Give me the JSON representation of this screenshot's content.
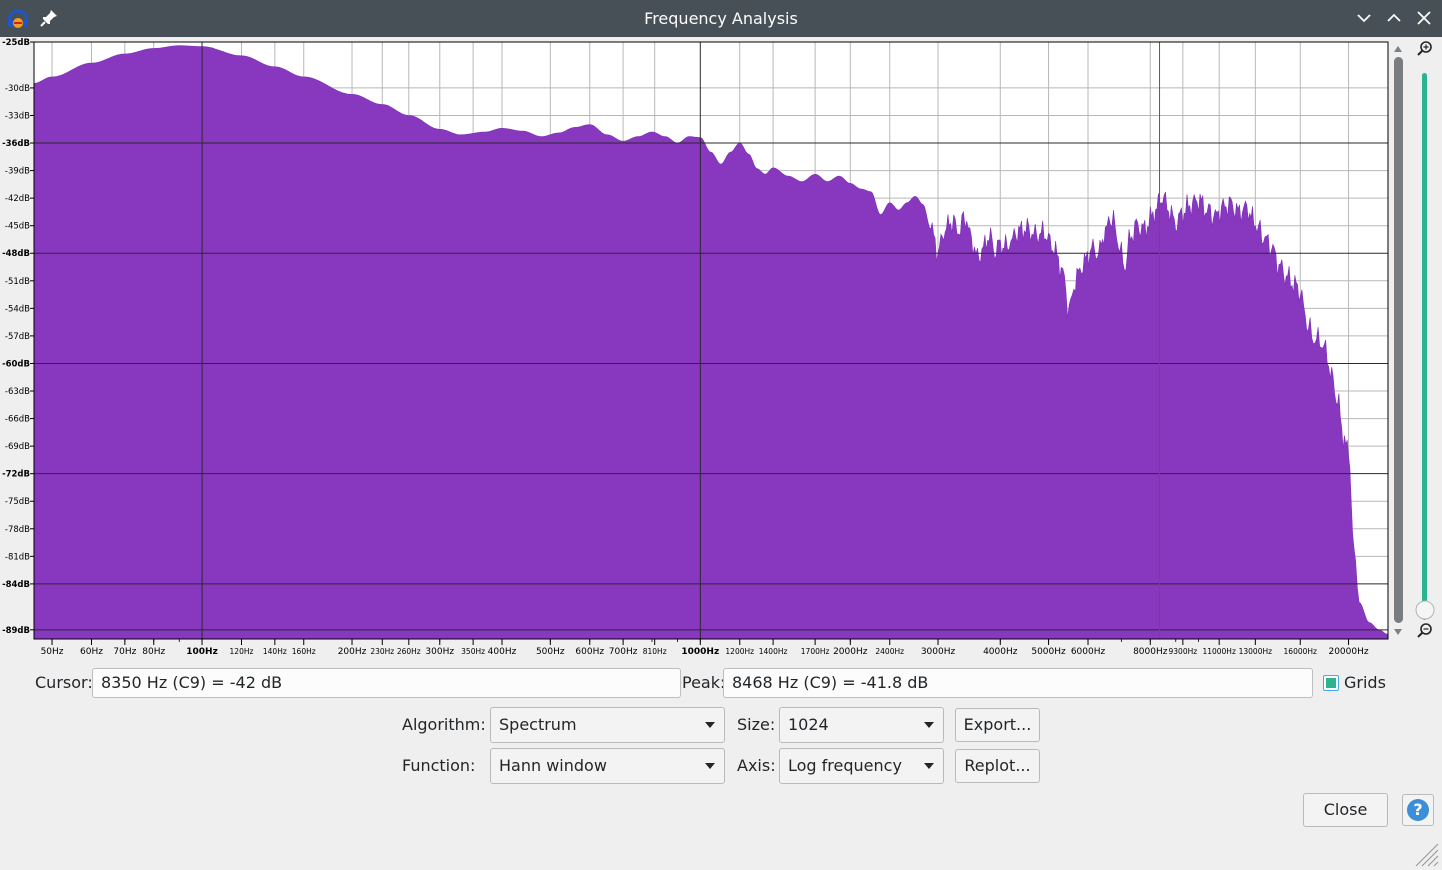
{
  "window": {
    "title": "Frequency Analysis",
    "icons": {
      "app": "audacity-logo-icon",
      "pin": "pin-icon",
      "minimize": "chevron-down-icon",
      "maximize": "chevron-up-icon",
      "close": "close-icon"
    }
  },
  "chart_data": {
    "type": "area",
    "xscale": "log",
    "xlim": [
      46,
      24000
    ],
    "ylim": [
      -90,
      -25
    ],
    "grid": true,
    "color": "#8738bf",
    "cursor_line_hz": 8350,
    "x_ticks": [
      {
        "v": 50,
        "label": "50Hz",
        "major": false
      },
      {
        "v": 60,
        "label": "60Hz",
        "major": false
      },
      {
        "v": 70,
        "label": "70Hz",
        "major": false
      },
      {
        "v": 80,
        "label": "80Hz",
        "major": false
      },
      {
        "v": 100,
        "label": "100Hz",
        "major": true
      },
      {
        "v": 120,
        "label": "120Hz",
        "major": false,
        "small": true
      },
      {
        "v": 140,
        "label": "140Hz",
        "major": false,
        "small": true
      },
      {
        "v": 160,
        "label": "160Hz",
        "major": false,
        "small": true
      },
      {
        "v": 200,
        "label": "200Hz",
        "major": false
      },
      {
        "v": 230,
        "label": "230Hz",
        "major": false,
        "small": true
      },
      {
        "v": 260,
        "label": "260Hz",
        "major": false,
        "small": true
      },
      {
        "v": 300,
        "label": "300Hz",
        "major": false
      },
      {
        "v": 350,
        "label": "350Hz",
        "major": false,
        "small": true
      },
      {
        "v": 400,
        "label": "400Hz",
        "major": false
      },
      {
        "v": 500,
        "label": "500Hz",
        "major": false
      },
      {
        "v": 600,
        "label": "600Hz",
        "major": false
      },
      {
        "v": 700,
        "label": "700Hz",
        "major": false
      },
      {
        "v": 810,
        "label": "810Hz",
        "major": false,
        "small": true
      },
      {
        "v": 1000,
        "label": "1000Hz",
        "major": true
      },
      {
        "v": 1200,
        "label": "1200Hz",
        "major": false,
        "small": true
      },
      {
        "v": 1400,
        "label": "1400Hz",
        "major": false,
        "small": true
      },
      {
        "v": 1700,
        "label": "1700Hz",
        "major": false,
        "small": true
      },
      {
        "v": 2000,
        "label": "2000Hz",
        "major": false
      },
      {
        "v": 2400,
        "label": "2400Hz",
        "major": false,
        "small": true
      },
      {
        "v": 3000,
        "label": "3000Hz",
        "major": false
      },
      {
        "v": 4000,
        "label": "4000Hz",
        "major": false
      },
      {
        "v": 5000,
        "label": "5000Hz",
        "major": false
      },
      {
        "v": 6000,
        "label": "6000Hz",
        "major": false
      },
      {
        "v": 8000,
        "label": "8000Hz",
        "major": false
      },
      {
        "v": 9300,
        "label": "9300Hz",
        "major": false,
        "small": true
      },
      {
        "v": 11000,
        "label": "11000Hz",
        "major": false,
        "small": true
      },
      {
        "v": 13000,
        "label": "13000Hz",
        "major": false,
        "small": true
      },
      {
        "v": 16000,
        "label": "16000Hz",
        "major": false,
        "small": true
      },
      {
        "v": 20000,
        "label": "20000Hz",
        "major": false
      }
    ],
    "y_ticks": [
      {
        "v": -25,
        "label": "-25dB",
        "major": true
      },
      {
        "v": -30,
        "label": "-30dB",
        "major": false
      },
      {
        "v": -33,
        "label": "-33dB",
        "major": false
      },
      {
        "v": -36,
        "label": "-36dB",
        "major": true
      },
      {
        "v": -39,
        "label": "-39dB",
        "major": false
      },
      {
        "v": -42,
        "label": "-42dB",
        "major": false
      },
      {
        "v": -45,
        "label": "-45dB",
        "major": false
      },
      {
        "v": -48,
        "label": "-48dB",
        "major": true
      },
      {
        "v": -51,
        "label": "-51dB",
        "major": false
      },
      {
        "v": -54,
        "label": "-54dB",
        "major": false
      },
      {
        "v": -57,
        "label": "-57dB",
        "major": false
      },
      {
        "v": -60,
        "label": "-60dB",
        "major": true
      },
      {
        "v": -63,
        "label": "-63dB",
        "major": false
      },
      {
        "v": -66,
        "label": "-66dB",
        "major": false
      },
      {
        "v": -69,
        "label": "-69dB",
        "major": false
      },
      {
        "v": -72,
        "label": "-72dB",
        "major": true
      },
      {
        "v": -75,
        "label": "-75dB",
        "major": false
      },
      {
        "v": -78,
        "label": "-78dB",
        "major": false
      },
      {
        "v": -81,
        "label": "-81dB",
        "major": false
      },
      {
        "v": -84,
        "label": "-84dB",
        "major": true
      },
      {
        "v": -89,
        "label": "-89dB",
        "major": true
      }
    ],
    "points": [
      [
        46,
        -29.5
      ],
      [
        50,
        -28.8
      ],
      [
        60,
        -27.3
      ],
      [
        70,
        -26.3
      ],
      [
        80,
        -25.7
      ],
      [
        90,
        -25.4
      ],
      [
        100,
        -25.5
      ],
      [
        120,
        -26.5
      ],
      [
        140,
        -27.7
      ],
      [
        160,
        -28.8
      ],
      [
        200,
        -30.7
      ],
      [
        230,
        -31.8
      ],
      [
        260,
        -33.0
      ],
      [
        300,
        -34.5
      ],
      [
        330,
        -35.1
      ],
      [
        370,
        -34.8
      ],
      [
        400,
        -34.4
      ],
      [
        440,
        -34.7
      ],
      [
        480,
        -35.3
      ],
      [
        520,
        -34.9
      ],
      [
        560,
        -34.3
      ],
      [
        600,
        -34.0
      ],
      [
        650,
        -35.1
      ],
      [
        700,
        -35.8
      ],
      [
        750,
        -35.3
      ],
      [
        800,
        -34.8
      ],
      [
        850,
        -35.3
      ],
      [
        900,
        -36.0
      ],
      [
        950,
        -35.3
      ],
      [
        1000,
        -35.4
      ],
      [
        1050,
        -37.0
      ],
      [
        1100,
        -38.3
      ],
      [
        1150,
        -37.0
      ],
      [
        1200,
        -36.0
      ],
      [
        1250,
        -37.2
      ],
      [
        1300,
        -38.8
      ],
      [
        1350,
        -39.4
      ],
      [
        1400,
        -38.7
      ],
      [
        1500,
        -39.6
      ],
      [
        1600,
        -40.2
      ],
      [
        1700,
        -39.4
      ],
      [
        1800,
        -40.2
      ],
      [
        1900,
        -39.6
      ],
      [
        2000,
        -40.4
      ],
      [
        2100,
        -41.0
      ],
      [
        2200,
        -41.3
      ],
      [
        2300,
        -43.8
      ],
      [
        2400,
        -42.5
      ],
      [
        2500,
        -43.3
      ],
      [
        2600,
        -42.5
      ],
      [
        2700,
        -41.8
      ],
      [
        2800,
        -42.7
      ],
      [
        2900,
        -45.4
      ],
      [
        3000,
        -47.8
      ],
      [
        3100,
        -45.4
      ],
      [
        3200,
        -44.5
      ],
      [
        3300,
        -45.6
      ],
      [
        3400,
        -44.0
      ],
      [
        3500,
        -46.5
      ],
      [
        3600,
        -48.5
      ],
      [
        3700,
        -47.5
      ],
      [
        3800,
        -46.0
      ],
      [
        3900,
        -47.8
      ],
      [
        4000,
        -47.0
      ],
      [
        4100,
        -47.3
      ],
      [
        4200,
        -46.8
      ],
      [
        4300,
        -45.8
      ],
      [
        4500,
        -45.3
      ],
      [
        4700,
        -46.0
      ],
      [
        4900,
        -45.8
      ],
      [
        5100,
        -47.3
      ],
      [
        5300,
        -49.5
      ],
      [
        5500,
        -54.0
      ],
      [
        5700,
        -50.5
      ],
      [
        5900,
        -49.0
      ],
      [
        6100,
        -47.5
      ],
      [
        6300,
        -48.0
      ],
      [
        6500,
        -45.5
      ],
      [
        6700,
        -44.0
      ],
      [
        6900,
        -46.8
      ],
      [
        7100,
        -49.5
      ],
      [
        7300,
        -46.3
      ],
      [
        7500,
        -45.0
      ],
      [
        7800,
        -45.4
      ],
      [
        8000,
        -44.3
      ],
      [
        8200,
        -43.3
      ],
      [
        8468,
        -41.8
      ],
      [
        8700,
        -43.2
      ],
      [
        9000,
        -44.8
      ],
      [
        9300,
        -43.6
      ],
      [
        9600,
        -42.8
      ],
      [
        10000,
        -42.2
      ],
      [
        10400,
        -43.3
      ],
      [
        10800,
        -44.0
      ],
      [
        11200,
        -43.0
      ],
      [
        11600,
        -42.6
      ],
      [
        12000,
        -43.5
      ],
      [
        12500,
        -43.1
      ],
      [
        13000,
        -44.8
      ],
      [
        13500,
        -46.2
      ],
      [
        14000,
        -47.3
      ],
      [
        14500,
        -49.3
      ],
      [
        15000,
        -50.5
      ],
      [
        15500,
        -51.3
      ],
      [
        16000,
        -52.2
      ],
      [
        16500,
        -55.6
      ],
      [
        17000,
        -57.3
      ],
      [
        17500,
        -57.5
      ],
      [
        18000,
        -58.6
      ],
      [
        18500,
        -61.5
      ],
      [
        19000,
        -64.0
      ],
      [
        19500,
        -67.8
      ],
      [
        20000,
        -70.0
      ],
      [
        20500,
        -80.0
      ],
      [
        21000,
        -86.0
      ],
      [
        22000,
        -88.2
      ],
      [
        23000,
        -89.0
      ],
      [
        24000,
        -89.5
      ]
    ]
  },
  "controls": {
    "cursor_label": "Cursor:",
    "cursor_value": "8350 Hz (C9) = -42 dB",
    "peak_label": "Peak:",
    "peak_value": "8468 Hz (C9) = -41.8 dB",
    "grids_label": "Grids",
    "grids_checked": true,
    "algorithm_label": "Algorithm:",
    "algorithm_value": "Spectrum",
    "size_label": "Size:",
    "size_value": "1024",
    "export_label": "Export...",
    "function_label": "Function:",
    "function_value": "Hann window",
    "axis_label": "Axis:",
    "axis_value": "Log frequency",
    "replot_label": "Replot...",
    "close_label": "Close",
    "help_label": "?"
  }
}
